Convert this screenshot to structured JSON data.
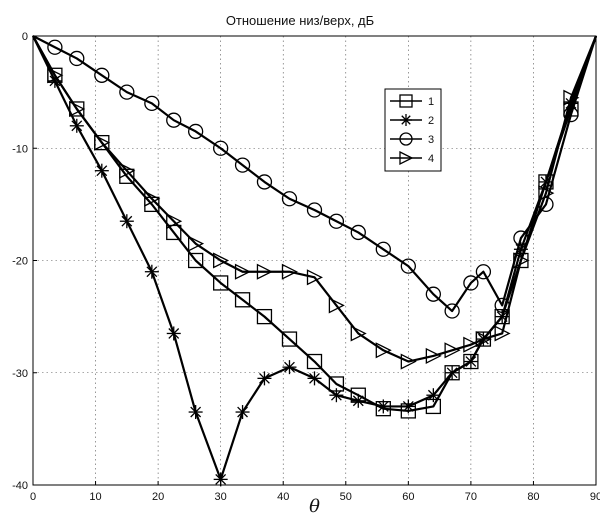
{
  "chart_data": {
    "type": "line",
    "title": "Отношение низ/верх, дБ",
    "xlabel": "θ",
    "ylabel": "",
    "xlim": [
      0,
      90
    ],
    "ylim": [
      -40,
      0
    ],
    "xticks": [
      "0",
      "10",
      "20",
      "30",
      "40",
      "50",
      "60",
      "70",
      "80",
      "90"
    ],
    "yticks": [
      "0",
      "-10",
      "-20",
      "-30",
      "-40"
    ],
    "grid": true,
    "legend_position": "top-right",
    "series": [
      {
        "name": "1",
        "marker": "square",
        "x": [
          0,
          3.5,
          7,
          11,
          15,
          19,
          22.5,
          26,
          30,
          33.5,
          37,
          41,
          45,
          48.5,
          52,
          56,
          60,
          64,
          67,
          70,
          72,
          75,
          78,
          82,
          86,
          90
        ],
        "y": [
          0,
          -3.5,
          -6.5,
          -9.5,
          -12.5,
          -15,
          -17.5,
          -20,
          -22,
          -23.5,
          -25,
          -27,
          -29,
          -31,
          -32,
          -33.2,
          -33.4,
          -33,
          -30,
          -29,
          -27,
          -25,
          -20,
          -13,
          -6.5,
          0
        ]
      },
      {
        "name": "2",
        "marker": "star",
        "x": [
          0,
          3.5,
          7,
          11,
          15,
          19,
          22.5,
          26,
          30,
          33.5,
          37,
          41,
          45,
          48.5,
          52,
          56,
          60,
          64,
          67,
          70,
          72,
          75,
          78,
          82,
          86,
          90
        ],
        "y": [
          0,
          -4,
          -8,
          -12,
          -16.5,
          -21,
          -26.5,
          -33.5,
          -39.5,
          -33.5,
          -30.5,
          -29.5,
          -30.5,
          -32,
          -32.5,
          -33,
          -33,
          -32,
          -30,
          -29,
          -27,
          -25,
          -19,
          -13,
          -6,
          0
        ]
      },
      {
        "name": "3",
        "marker": "circle",
        "x": [
          0,
          3.5,
          7,
          11,
          15,
          19,
          22.5,
          26,
          30,
          33.5,
          37,
          41,
          45,
          48.5,
          52,
          56,
          60,
          64,
          67,
          70,
          72,
          75,
          78,
          82,
          86,
          90
        ],
        "y": [
          0,
          -1,
          -2,
          -3.5,
          -5,
          -6,
          -7.5,
          -8.5,
          -10,
          -11.5,
          -13,
          -14.5,
          -15.5,
          -16.5,
          -17.5,
          -19,
          -20.5,
          -23,
          -24.5,
          -22,
          -21,
          -24,
          -18,
          -15,
          -7,
          0
        ]
      },
      {
        "name": "4",
        "marker": "triangle-right",
        "x": [
          0,
          3.5,
          7,
          11,
          15,
          19,
          22.5,
          26,
          30,
          33.5,
          37,
          41,
          45,
          48.5,
          52,
          56,
          60,
          64,
          67,
          70,
          72,
          75,
          78,
          82,
          86,
          90
        ],
        "y": [
          0,
          -3.5,
          -6.5,
          -9.5,
          -12,
          -14.5,
          -16.5,
          -18.5,
          -20,
          -21,
          -21,
          -21,
          -21.5,
          -24,
          -26.5,
          -28,
          -29,
          -28.5,
          -28,
          -27.5,
          -27,
          -26.5,
          -20,
          -14,
          -5.5,
          0
        ]
      }
    ]
  }
}
